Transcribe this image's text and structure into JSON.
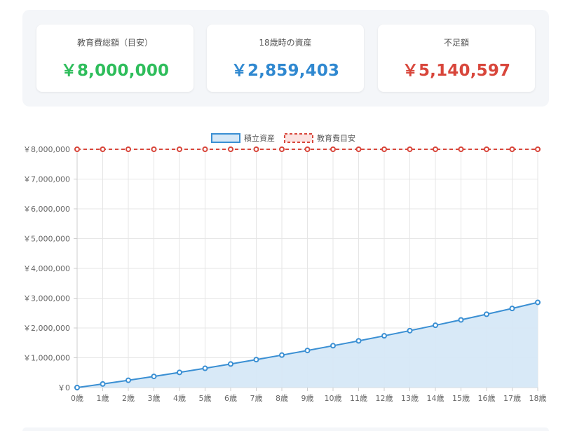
{
  "summary": {
    "total_cost": {
      "label": "教育費総額（目安）",
      "value": "￥8,000,000",
      "color": "#2ebd5b"
    },
    "asset_at_18": {
      "label": "18歳時の資産",
      "value": "￥2,859,403",
      "color": "#2f88d0"
    },
    "shortfall": {
      "label": "不足額",
      "value": "￥5,140,597",
      "color": "#d8463b"
    }
  },
  "chart_data": {
    "type": "line",
    "categories": [
      "0歳",
      "1歳",
      "2歳",
      "3歳",
      "4歳",
      "5歳",
      "6歳",
      "7歳",
      "8歳",
      "9歳",
      "10歳",
      "11歳",
      "12歳",
      "13歳",
      "14歳",
      "15歳",
      "16歳",
      "17歳",
      "18歳"
    ],
    "series": [
      {
        "name": "積立資産",
        "color": "#3a8fd3",
        "fill": "area",
        "values": [
          0,
          120000,
          245000,
          375000,
          508000,
          646000,
          790000,
          938000,
          1090000,
          1245000,
          1405000,
          1568000,
          1737000,
          1910000,
          2090000,
          2272000,
          2462000,
          2656000,
          2859403
        ]
      },
      {
        "name": "教育費目安",
        "color": "#d8463b",
        "dashed": true,
        "values": [
          8000000,
          8000000,
          8000000,
          8000000,
          8000000,
          8000000,
          8000000,
          8000000,
          8000000,
          8000000,
          8000000,
          8000000,
          8000000,
          8000000,
          8000000,
          8000000,
          8000000,
          8000000,
          8000000
        ]
      }
    ],
    "y_ticks": [
      "￥0",
      "￥1,000,000",
      "￥2,000,000",
      "￥3,000,000",
      "￥4,000,000",
      "￥5,000,000",
      "￥6,000,000",
      "￥7,000,000",
      "￥8,000,000"
    ],
    "ylim": [
      0,
      8000000
    ],
    "grid": true,
    "legend_position": "top-center"
  }
}
